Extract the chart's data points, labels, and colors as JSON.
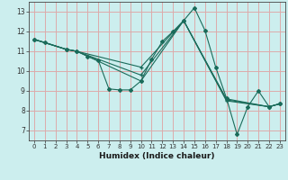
{
  "title": "",
  "xlabel": "Humidex (Indice chaleur)",
  "bg_color": "#cceeee",
  "grid_color": "#ddaaaa",
  "line_color": "#1a6b5a",
  "xlim": [
    -0.5,
    23.5
  ],
  "ylim": [
    6.5,
    13.5
  ],
  "xticks": [
    0,
    1,
    2,
    3,
    4,
    5,
    6,
    7,
    8,
    9,
    10,
    11,
    12,
    13,
    14,
    15,
    16,
    17,
    18,
    19,
    20,
    21,
    22,
    23
  ],
  "yticks": [
    7,
    8,
    9,
    10,
    11,
    12,
    13
  ],
  "lines": [
    {
      "x": [
        0,
        1,
        3,
        4,
        5,
        6,
        7,
        8,
        9,
        10,
        11,
        12,
        13,
        14,
        15,
        16,
        17,
        18,
        19,
        20,
        21,
        22,
        23
      ],
      "y": [
        11.6,
        11.45,
        11.1,
        11.0,
        10.75,
        10.55,
        9.1,
        9.05,
        9.05,
        9.5,
        10.6,
        11.5,
        12.0,
        12.55,
        13.2,
        12.05,
        10.2,
        8.65,
        6.8,
        8.2,
        9.0,
        8.2,
        8.35
      ],
      "marker": "D",
      "ms": 2.0
    },
    {
      "x": [
        0,
        3,
        4,
        10,
        14,
        18,
        22,
        23
      ],
      "y": [
        11.6,
        11.1,
        11.0,
        10.2,
        12.55,
        8.6,
        8.2,
        8.35
      ],
      "marker": "+",
      "ms": 3.5
    },
    {
      "x": [
        0,
        3,
        4,
        10,
        14,
        18,
        22,
        23
      ],
      "y": [
        11.6,
        11.1,
        11.0,
        9.8,
        12.55,
        8.55,
        8.2,
        8.35
      ],
      "marker": "+",
      "ms": 3.5
    },
    {
      "x": [
        0,
        3,
        4,
        10,
        14,
        18,
        22,
        23
      ],
      "y": [
        11.6,
        11.1,
        11.0,
        9.5,
        12.55,
        8.5,
        8.2,
        8.35
      ],
      "marker": "+",
      "ms": 3.5
    }
  ]
}
